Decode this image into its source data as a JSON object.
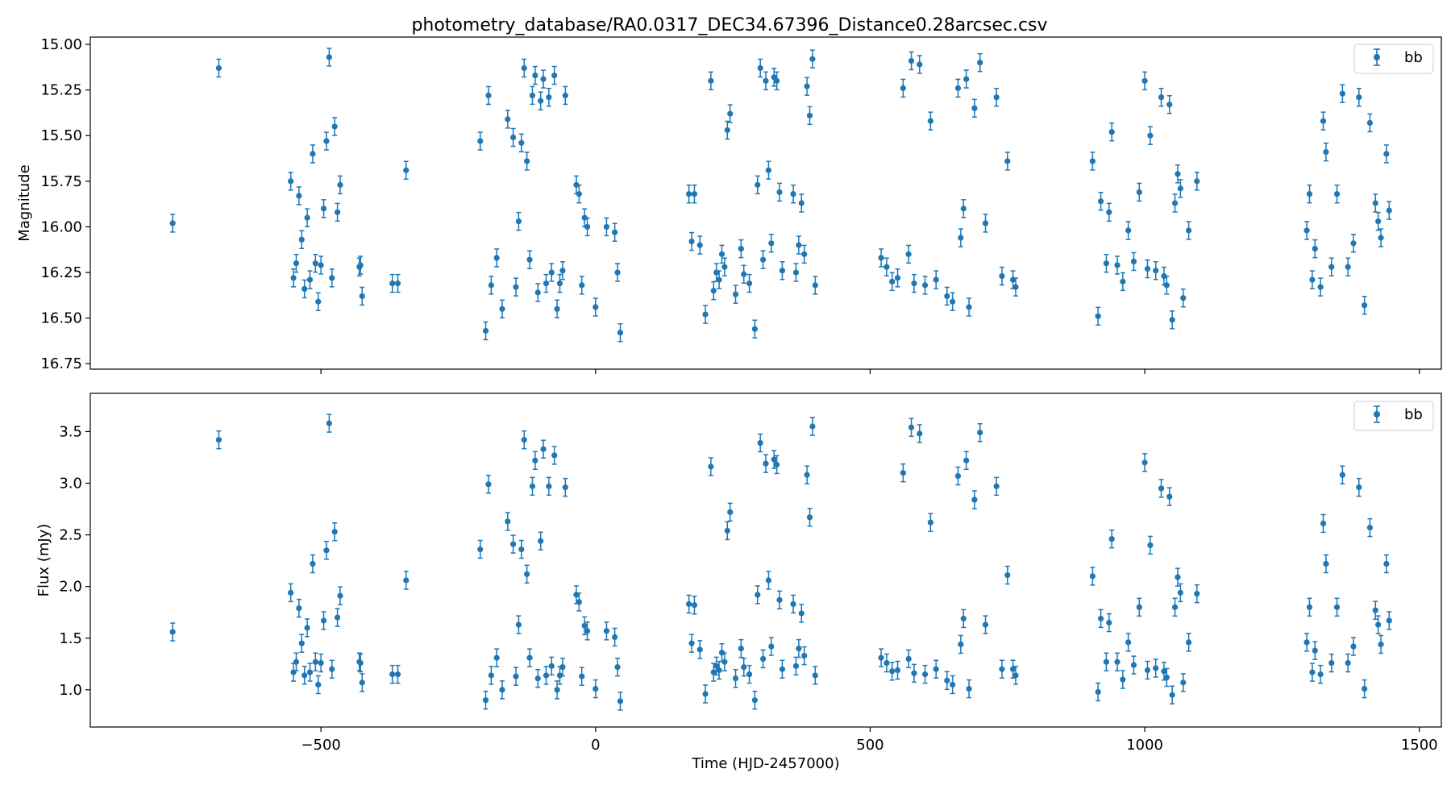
{
  "title": "photometry_database/RA0.0317_DEC34.67396_Distance0.28arcsec.csv",
  "xlabel": "Time (HJD-2457000)",
  "colors": {
    "series": "#1f77b4",
    "axes": "#000000",
    "background": "#ffffff"
  },
  "chart_data": [
    {
      "type": "scatter",
      "name": "magnitude-panel",
      "ylabel": "Magnitude",
      "y_inverted": true,
      "xlim": [
        -920,
        1540
      ],
      "ylim": [
        16.78,
        14.96
      ],
      "xticks": [
        -500,
        0,
        500,
        1000,
        1500
      ],
      "xtick_labels": [
        "",
        "",
        "",
        "",
        ""
      ],
      "yticks": [
        15.0,
        15.25,
        15.5,
        15.75,
        16.0,
        16.25,
        16.5,
        16.75
      ],
      "ytick_labels": [
        "15.00",
        "15.25",
        "15.50",
        "15.75",
        "16.00",
        "16.25",
        "16.50",
        "16.75"
      ],
      "legend": {
        "label": "bb",
        "position": "top-right"
      },
      "series": [
        {
          "name": "bb",
          "x": [
            -770,
            -686,
            -555,
            -550,
            -545,
            -540,
            -535,
            -530,
            -525,
            -520,
            -515,
            -510,
            -505,
            -500,
            -495,
            -490,
            -485,
            -480,
            -475,
            -470,
            -465,
            -430,
            -428,
            -425,
            -370,
            -360,
            -345,
            -210,
            -200,
            -195,
            -190,
            -180,
            -170,
            -160,
            -150,
            -145,
            -140,
            -135,
            -130,
            -125,
            -120,
            -115,
            -110,
            -105,
            -100,
            -95,
            -90,
            -85,
            -80,
            -75,
            -70,
            -65,
            -60,
            -55,
            -35,
            -30,
            -25,
            -20,
            -15,
            0,
            20,
            35,
            40,
            45,
            170,
            175,
            180,
            190,
            200,
            210,
            215,
            220,
            225,
            230,
            235,
            240,
            245,
            255,
            265,
            270,
            280,
            290,
            295,
            300,
            305,
            310,
            315,
            320,
            325,
            330,
            335,
            340,
            360,
            365,
            370,
            375,
            380,
            385,
            390,
            395,
            400,
            520,
            530,
            540,
            550,
            560,
            570,
            575,
            580,
            590,
            600,
            610,
            620,
            640,
            650,
            660,
            665,
            670,
            675,
            680,
            690,
            700,
            710,
            730,
            740,
            750,
            760,
            765,
            905,
            915,
            920,
            930,
            935,
            940,
            950,
            960,
            970,
            980,
            990,
            1000,
            1005,
            1010,
            1020,
            1030,
            1035,
            1040,
            1045,
            1050,
            1055,
            1060,
            1065,
            1070,
            1080,
            1095,
            1295,
            1300,
            1305,
            1310,
            1320,
            1325,
            1330,
            1340,
            1350,
            1360,
            1370,
            1380,
            1390,
            1400,
            1410,
            1420,
            1425,
            1430,
            1440,
            1445
          ],
          "y": [
            15.98,
            15.13,
            15.75,
            16.28,
            16.2,
            15.83,
            16.07,
            16.34,
            15.95,
            16.29,
            15.6,
            16.2,
            16.41,
            16.21,
            15.9,
            15.53,
            15.07,
            16.28,
            15.45,
            15.92,
            15.77,
            16.22,
            16.21,
            16.38,
            16.31,
            16.31,
            15.69,
            15.53,
            16.57,
            15.28,
            16.32,
            16.17,
            16.45,
            15.41,
            15.51,
            16.33,
            15.97,
            15.54,
            15.13,
            15.64,
            16.18,
            15.28,
            15.17,
            16.36,
            15.31,
            15.19,
            16.31,
            15.29,
            16.25,
            15.17,
            16.45,
            16.31,
            16.24,
            15.28,
            15.77,
            15.82,
            16.32,
            15.95,
            16.0,
            16.44,
            16.0,
            16.03,
            16.25,
            16.58,
            15.82,
            16.08,
            15.82,
            16.1,
            16.48,
            15.2,
            16.35,
            16.25,
            16.29,
            16.15,
            16.22,
            15.47,
            15.38,
            16.37,
            16.12,
            16.26,
            16.31,
            16.56,
            15.77,
            15.13,
            16.18,
            15.2,
            15.69,
            16.09,
            15.18,
            15.2,
            15.81,
            16.24,
            15.82,
            16.25,
            16.1,
            15.87,
            16.15,
            15.23,
            15.39,
            15.08,
            16.32,
            16.17,
            16.22,
            16.3,
            16.28,
            15.24,
            16.15,
            15.09,
            16.31,
            15.11,
            16.32,
            15.42,
            16.29,
            16.38,
            16.41,
            15.24,
            16.06,
            15.9,
            15.19,
            16.44,
            15.35,
            15.1,
            15.98,
            15.29,
            16.27,
            15.64,
            16.29,
            16.33,
            15.64,
            16.49,
            15.86,
            16.2,
            15.92,
            15.48,
            16.21,
            16.3,
            16.02,
            16.19,
            15.81,
            15.2,
            16.23,
            15.5,
            16.24,
            15.29,
            16.27,
            16.32,
            15.33,
            16.51,
            15.87,
            15.71,
            15.79,
            16.39,
            16.02,
            15.75,
            16.02,
            15.82,
            16.29,
            16.12,
            16.33,
            15.42,
            15.59,
            16.22,
            15.82,
            15.27,
            16.22,
            16.09,
            15.29,
            16.43,
            15.43,
            15.87,
            15.97,
            16.06,
            15.6,
            15.91
          ]
        }
      ]
    },
    {
      "type": "scatter",
      "name": "flux-panel",
      "ylabel": "Flux (mJy)",
      "y_inverted": false,
      "xlim": [
        -920,
        1540
      ],
      "ylim": [
        0.64,
        3.87
      ],
      "xticks": [
        -500,
        0,
        500,
        1000,
        1500
      ],
      "xtick_labels": [
        "−500",
        "0",
        "500",
        "1000",
        "1500"
      ],
      "yticks": [
        1.0,
        1.5,
        2.0,
        2.5,
        3.0,
        3.5
      ],
      "ytick_labels": [
        "1.0",
        "1.5",
        "2.0",
        "2.5",
        "3.0",
        "3.5"
      ],
      "legend": {
        "label": "bb",
        "position": "top-right"
      },
      "series": [
        {
          "name": "bb",
          "x": [
            -770,
            -686,
            -555,
            -550,
            -545,
            -540,
            -535,
            -530,
            -525,
            -520,
            -515,
            -510,
            -505,
            -500,
            -495,
            -490,
            -485,
            -480,
            -475,
            -470,
            -465,
            -430,
            -428,
            -425,
            -370,
            -360,
            -345,
            -210,
            -200,
            -195,
            -190,
            -180,
            -170,
            -160,
            -150,
            -145,
            -140,
            -135,
            -130,
            -125,
            -120,
            -115,
            -110,
            -105,
            -100,
            -95,
            -90,
            -85,
            -80,
            -75,
            -70,
            -65,
            -60,
            -55,
            -35,
            -30,
            -25,
            -20,
            -15,
            0,
            20,
            35,
            40,
            45,
            170,
            175,
            180,
            190,
            200,
            210,
            215,
            220,
            225,
            230,
            235,
            240,
            245,
            255,
            265,
            270,
            280,
            290,
            295,
            300,
            305,
            310,
            315,
            320,
            325,
            330,
            335,
            340,
            360,
            365,
            370,
            375,
            380,
            385,
            390,
            395,
            400,
            520,
            530,
            540,
            550,
            560,
            570,
            575,
            580,
            590,
            600,
            610,
            620,
            640,
            650,
            660,
            665,
            670,
            675,
            680,
            690,
            700,
            710,
            730,
            740,
            750,
            760,
            765,
            905,
            915,
            920,
            930,
            935,
            940,
            950,
            960,
            970,
            980,
            990,
            1000,
            1005,
            1010,
            1020,
            1030,
            1035,
            1040,
            1045,
            1050,
            1055,
            1060,
            1065,
            1070,
            1080,
            1095,
            1295,
            1300,
            1305,
            1310,
            1320,
            1325,
            1330,
            1340,
            1350,
            1360,
            1370,
            1380,
            1390,
            1400,
            1410,
            1420,
            1425,
            1430,
            1440,
            1445
          ],
          "y": [
            1.56,
            3.42,
            1.94,
            1.17,
            1.27,
            1.79,
            1.45,
            1.14,
            1.6,
            1.17,
            2.22,
            1.27,
            1.05,
            1.26,
            1.67,
            2.35,
            3.58,
            1.2,
            2.53,
            1.7,
            1.91,
            1.27,
            1.26,
            1.07,
            1.15,
            1.15,
            2.06,
            2.36,
            0.9,
            2.99,
            1.14,
            1.31,
            1.0,
            2.63,
            2.41,
            1.13,
            1.63,
            2.36,
            3.42,
            2.12,
            1.31,
            2.97,
            3.22,
            1.11,
            2.44,
            3.33,
            1.14,
            2.97,
            1.23,
            3.27,
            1.0,
            1.14,
            1.22,
            2.96,
            1.92,
            1.85,
            1.13,
            1.62,
            1.57,
            1.01,
            1.57,
            1.51,
            1.22,
            0.89,
            1.83,
            1.45,
            1.82,
            1.39,
            0.96,
            3.16,
            1.17,
            1.23,
            1.19,
            1.36,
            1.27,
            2.54,
            2.72,
            1.11,
            1.4,
            1.22,
            1.15,
            0.9,
            1.92,
            3.39,
            1.3,
            3.19,
            2.06,
            1.42,
            3.23,
            3.18,
            1.87,
            1.2,
            1.83,
            1.23,
            1.4,
            1.74,
            1.33,
            3.08,
            2.67,
            3.55,
            1.14,
            1.31,
            1.26,
            1.18,
            1.19,
            3.1,
            1.3,
            3.54,
            1.16,
            3.48,
            1.15,
            2.62,
            1.2,
            1.09,
            1.05,
            3.07,
            1.44,
            1.69,
            3.22,
            1.01,
            2.84,
            3.49,
            1.63,
            2.97,
            1.2,
            2.11,
            1.2,
            1.14,
            2.1,
            0.98,
            1.69,
            1.27,
            1.65,
            2.46,
            1.27,
            1.1,
            1.46,
            1.24,
            1.8,
            3.2,
            1.19,
            2.4,
            1.21,
            2.95,
            1.18,
            1.12,
            2.87,
            0.95,
            1.8,
            2.09,
            1.94,
            1.07,
            1.46,
            1.93,
            1.46,
            1.8,
            1.17,
            1.38,
            1.15,
            2.61,
            2.22,
            1.26,
            1.8,
            3.08,
            1.26,
            1.42,
            2.96,
            1.01,
            2.57,
            1.77,
            1.63,
            1.44,
            2.22,
            1.67
          ]
        }
      ]
    }
  ]
}
